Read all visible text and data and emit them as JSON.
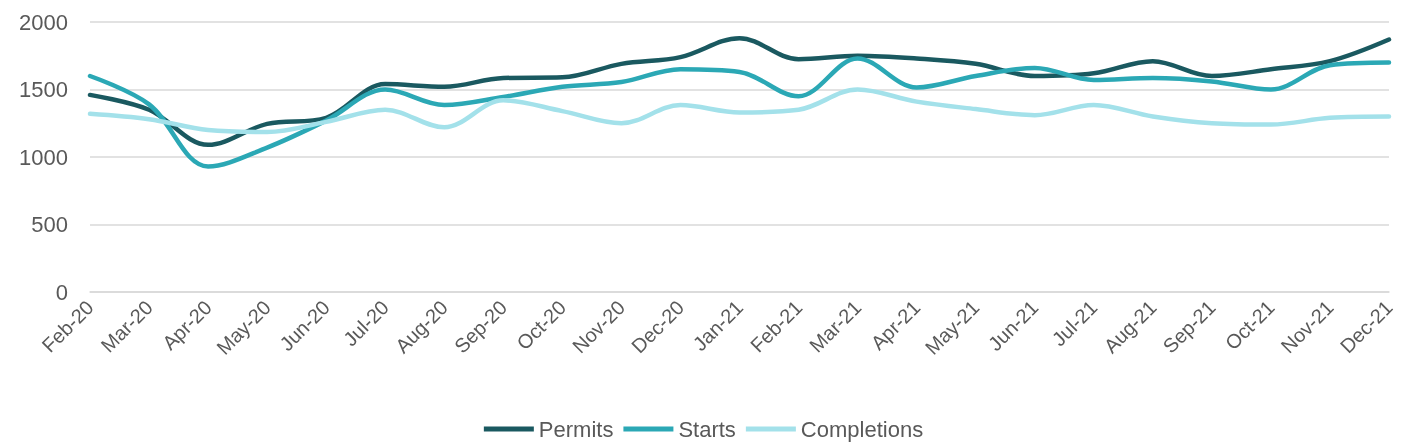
{
  "chart_data": {
    "type": "line",
    "categories": [
      "Feb-20",
      "Mar-20",
      "Apr-20",
      "May-20",
      "Jun-20",
      "Jul-20",
      "Aug-20",
      "Sep-20",
      "Oct-20",
      "Nov-20",
      "Dec-20",
      "Jan-21",
      "Feb-21",
      "Mar-21",
      "Apr-21",
      "May-21",
      "Jun-21",
      "Jul-21",
      "Aug-21",
      "Sep-21",
      "Oct-21",
      "Nov-21",
      "Dec-21"
    ],
    "series": [
      {
        "name": "Permits",
        "color": "#1a5960",
        "values": [
          1460,
          1350,
          1090,
          1245,
          1290,
          1540,
          1520,
          1585,
          1590,
          1690,
          1740,
          1880,
          1725,
          1750,
          1730,
          1690,
          1600,
          1620,
          1710,
          1600,
          1650,
          1710,
          1870
        ]
      },
      {
        "name": "Starts",
        "color": "#2ba8b5",
        "values": [
          1600,
          1390,
          930,
          1070,
          1270,
          1500,
          1385,
          1445,
          1520,
          1555,
          1650,
          1630,
          1450,
          1730,
          1515,
          1600,
          1660,
          1570,
          1585,
          1560,
          1500,
          1680,
          1700
        ]
      },
      {
        "name": "Completions",
        "color": "#a3e1ea",
        "values": [
          1320,
          1280,
          1200,
          1185,
          1260,
          1350,
          1220,
          1420,
          1340,
          1250,
          1385,
          1330,
          1350,
          1500,
          1410,
          1355,
          1310,
          1385,
          1300,
          1250,
          1240,
          1290,
          1300
        ]
      }
    ],
    "ylim": [
      0,
      2000
    ],
    "yticks": [
      0,
      500,
      1000,
      1500,
      2000
    ],
    "grid": "y",
    "legend": "bottom",
    "marker": "none",
    "line_style": "solid"
  }
}
